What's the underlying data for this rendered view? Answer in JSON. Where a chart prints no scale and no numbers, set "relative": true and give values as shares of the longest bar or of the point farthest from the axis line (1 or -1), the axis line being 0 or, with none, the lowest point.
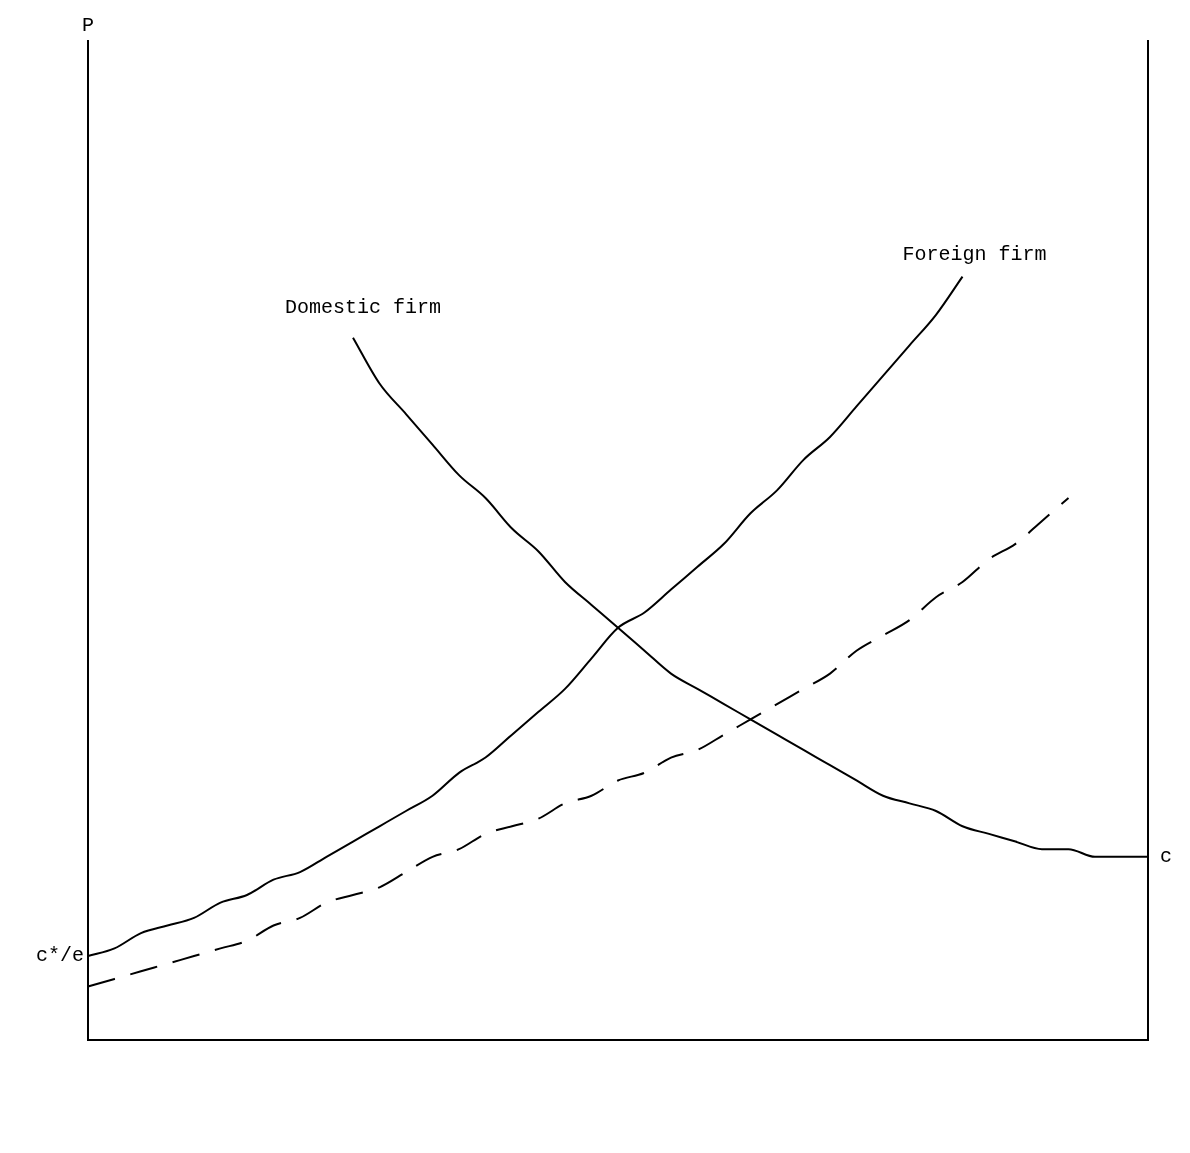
{
  "chart_data": {
    "type": "line",
    "relative": true,
    "legend": false,
    "grid": false,
    "marker": "none",
    "categories": [
      null,
      null,
      null,
      null,
      null,
      null,
      null,
      null,
      null,
      null,
      null,
      null,
      null,
      null,
      null,
      null,
      null,
      null,
      null,
      null,
      null,
      null,
      null,
      null,
      null,
      null,
      null,
      null,
      null,
      null,
      null,
      null,
      null,
      null,
      null,
      null,
      null,
      null,
      null,
      null,
      null
    ],
    "series": [
      {
        "name": "Domestic firm",
        "color": "#000000",
        "line_style": "solid",
        "values": [
          null,
          null,
          null,
          null,
          null,
          null,
          null,
          null,
          null,
          null,
          0.92,
          0.86,
          0.82,
          0.78,
          0.74,
          0.71,
          0.67,
          0.64,
          0.6,
          0.57,
          0.54,
          0.51,
          0.48,
          0.46,
          0.44,
          0.42,
          0.4,
          0.38,
          0.36,
          0.34,
          0.32,
          0.31,
          0.3,
          0.28,
          0.27,
          0.26,
          0.25,
          0.25,
          0.24,
          0.24,
          0.24
        ]
      },
      {
        "name": "Foreign firm",
        "color": "#000000",
        "line_style": "solid",
        "values": [
          0.11,
          0.12,
          0.14,
          0.15,
          0.16,
          0.18,
          0.19,
          0.21,
          0.22,
          0.24,
          0.26,
          0.28,
          0.3,
          0.32,
          0.35,
          0.37,
          0.4,
          0.43,
          0.46,
          0.5,
          0.54,
          0.56,
          0.59,
          0.62,
          0.65,
          0.69,
          0.72,
          0.76,
          0.79,
          0.83,
          0.87,
          0.91,
          0.95,
          1.0,
          null,
          null,
          null,
          null,
          null,
          null,
          null
        ]
      },
      {
        "color": "#000000",
        "line_style": "dashed",
        "values": [
          0.07,
          0.08,
          0.09,
          0.1,
          0.11,
          0.12,
          0.13,
          0.15,
          0.16,
          0.18,
          0.19,
          0.2,
          0.22,
          0.24,
          0.25,
          0.27,
          0.28,
          0.29,
          0.31,
          0.32,
          0.34,
          0.35,
          0.37,
          0.38,
          0.4,
          0.42,
          0.44,
          0.46,
          0.48,
          0.51,
          0.53,
          0.55,
          0.58,
          0.6,
          0.63,
          0.65,
          0.68,
          0.71,
          null,
          null,
          null
        ]
      }
    ],
    "annotations": [
      "P",
      "c*/e",
      "c"
    ]
  }
}
